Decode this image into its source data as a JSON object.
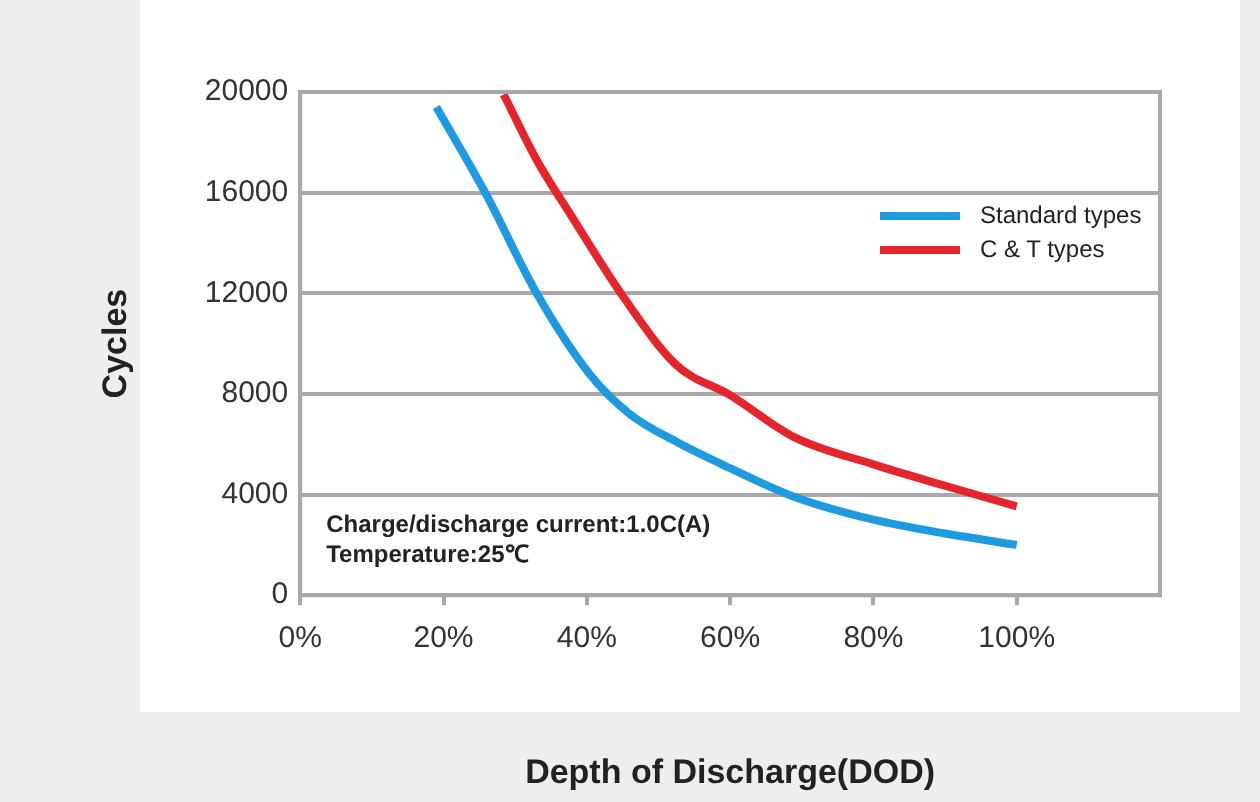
{
  "chart_data": {
    "type": "line",
    "xlabel": "Depth of Discharge(DOD)",
    "ylabel": "Cycles",
    "x": [
      19,
      26,
      33,
      40.5,
      46,
      52.5,
      60,
      69,
      80,
      90,
      100
    ],
    "series": [
      {
        "name": "Standard types",
        "color": "#1e9be0",
        "values": [
          19400,
          15900,
          12000,
          8750,
          7200,
          6100,
          5050,
          3900,
          3000,
          2450,
          2000
        ]
      },
      {
        "name": "C & T types",
        "color": "#e5242b",
        "x": [
          28.4,
          33,
          37.8,
          45,
          52.5,
          60,
          69,
          80,
          90,
          100
        ],
        "values": [
          19900,
          17300,
          15100,
          11900,
          9150,
          7950,
          6270,
          5200,
          4350,
          3530
        ]
      }
    ],
    "xlim": [
      0,
      120
    ],
    "xticks": [
      {
        "value": 0,
        "label": "0%"
      },
      {
        "value": 20,
        "label": "20%"
      },
      {
        "value": 40,
        "label": "40%"
      },
      {
        "value": 60,
        "label": "60%"
      },
      {
        "value": 80,
        "label": "80%"
      },
      {
        "value": 100,
        "label": "100%"
      }
    ],
    "ylim": [
      0,
      20000
    ],
    "yticks": [
      0,
      4000,
      8000,
      12000,
      16000,
      20000
    ],
    "grid": "y",
    "legend": "top right",
    "marker": "none",
    "line_style": "solid",
    "annotations": [
      "Charge/discharge current:1.0C(A)",
      "Temperature:25℃"
    ]
  }
}
